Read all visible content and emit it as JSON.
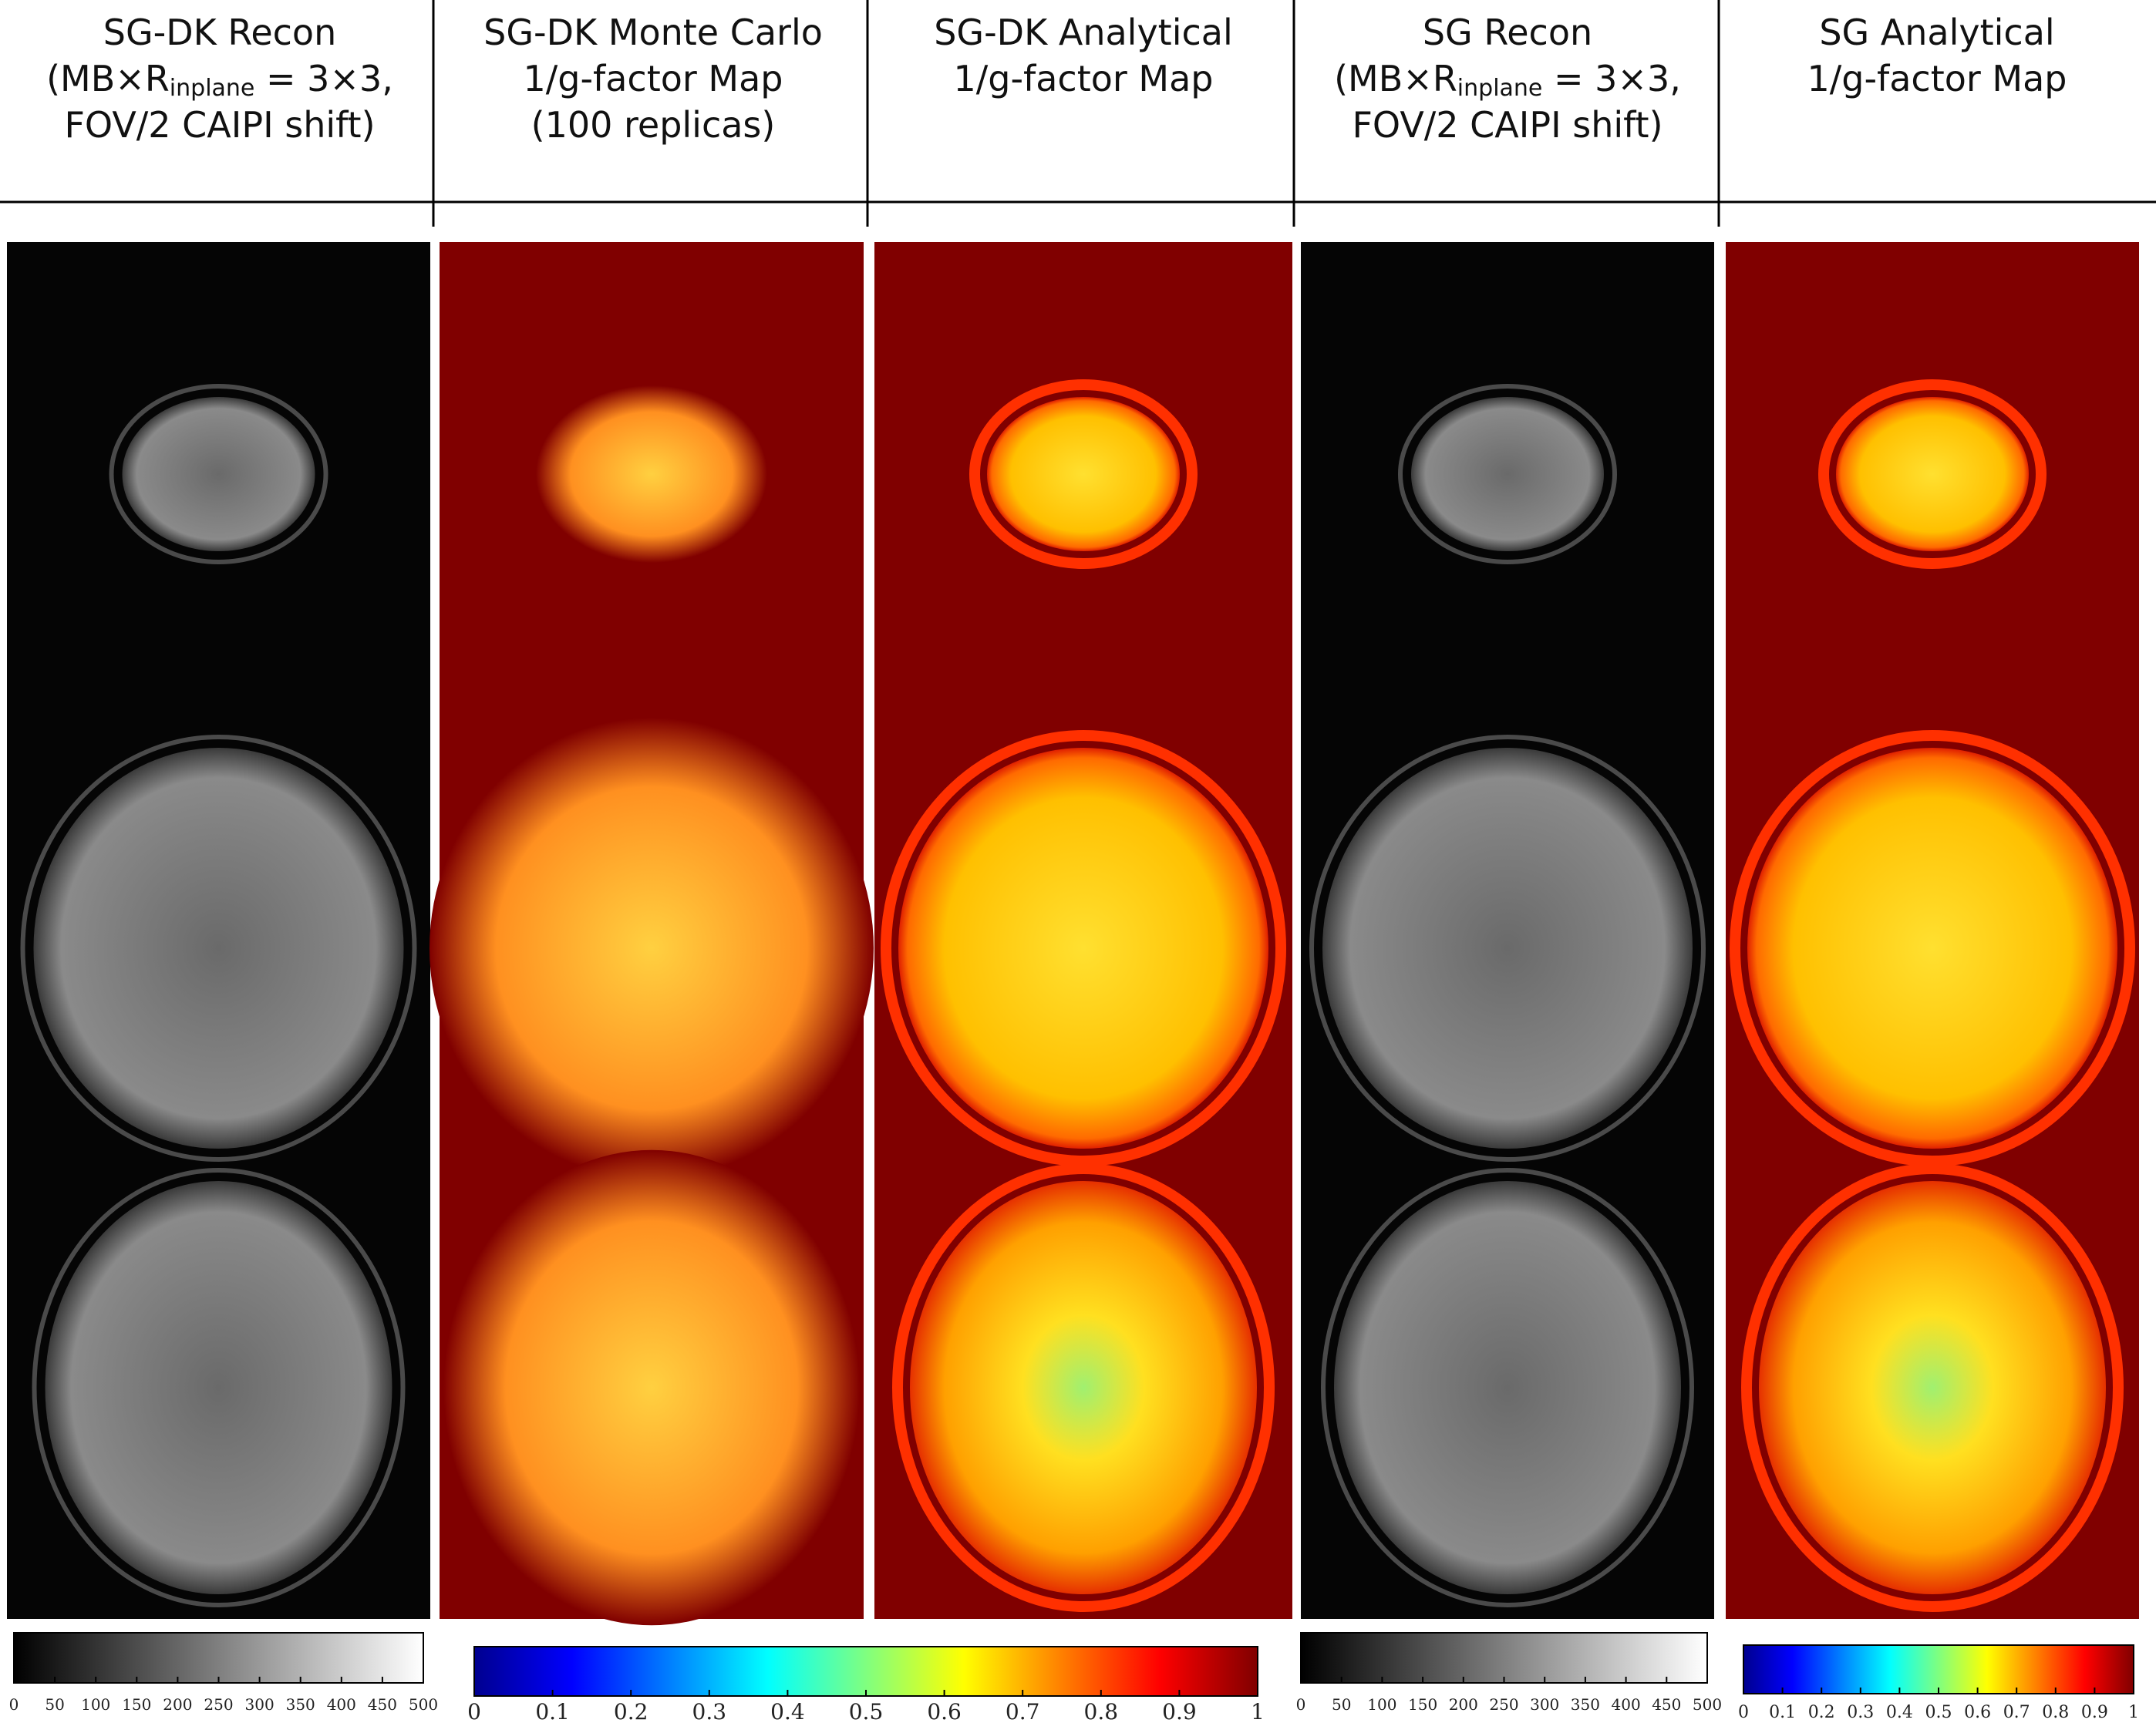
{
  "columns": [
    {
      "lines": [
        "SG-DK Recon",
        {
          "main": "(MB×R",
          "sub": "inplane",
          "rest": " = 3×3,"
        },
        "FOV/2 CAIPI shift)"
      ]
    },
    {
      "lines": [
        "SG-DK Monte Carlo",
        "1/g-factor Map",
        "(100 replicas)"
      ]
    },
    {
      "lines": [
        "SG-DK Analytical",
        "1/g-factor Map"
      ]
    },
    {
      "lines": [
        "SG Recon",
        {
          "main": "(MB×R",
          "sub": "inplane",
          "rest": "  = 3×3,"
        },
        "FOV/2 CAIPI shift)"
      ]
    },
    {
      "lines": [
        "SG Analytical",
        "1/g-factor Map"
      ]
    }
  ],
  "colorbars": [
    {
      "colormap": "gray",
      "lim": [
        0,
        500
      ],
      "ticks": [
        0,
        50,
        100,
        150,
        200,
        250,
        300,
        350,
        400,
        450,
        500
      ]
    },
    {
      "colormap": "jet",
      "lim": [
        0,
        1
      ],
      "ticks": [
        0,
        0.1,
        0.2,
        0.3,
        0.4,
        0.5,
        0.6,
        0.7,
        0.8,
        0.9,
        1
      ]
    },
    {
      "colormap": "gray",
      "lim": [
        0,
        500
      ],
      "ticks": [
        0,
        50,
        100,
        150,
        200,
        250,
        300,
        350,
        400,
        450,
        500
      ]
    },
    {
      "colormap": "jet",
      "lim": [
        0,
        1
      ],
      "ticks": [
        0,
        0.1,
        0.2,
        0.3,
        0.4,
        0.5,
        0.6,
        0.7,
        0.8,
        0.9,
        1
      ]
    }
  ]
}
